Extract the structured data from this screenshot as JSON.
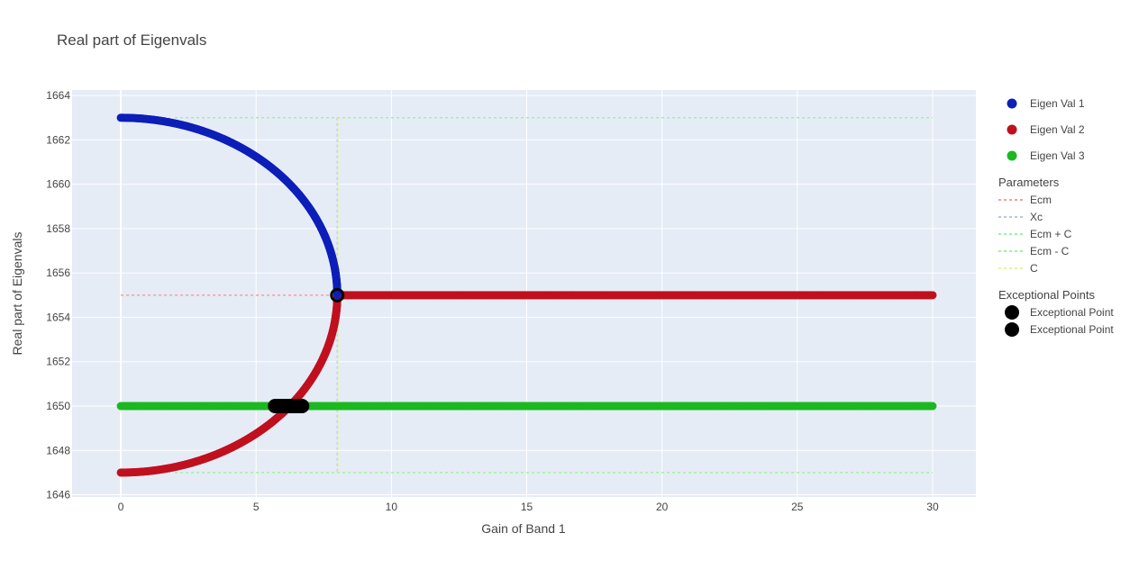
{
  "chart_data": {
    "type": "scatter",
    "title": "Real part of Eigenvals",
    "xlabel": "Gain of Band 1",
    "ylabel": "Real part of Eigenvals",
    "xlim": [
      -1.8,
      31.6
    ],
    "ylim": [
      1645.9,
      1664.25
    ],
    "xticks": [
      0,
      5,
      10,
      15,
      20,
      25,
      30
    ],
    "yticks": [
      1646,
      1648,
      1650,
      1652,
      1654,
      1656,
      1658,
      1660,
      1662,
      1664
    ],
    "grid": true,
    "legend_position": "right",
    "plot_bg": "#e5ecf6",
    "colors": {
      "eig1": "#0d1fb8",
      "eig2": "#c0101e",
      "eig3": "#1ab920",
      "ecm": "#f4a09a",
      "xc": "#bcc3ec",
      "ecm_plus_c": "#9ef29e",
      "ecm_minus_c": "#9ef29e",
      "c": "#e8f3a0",
      "ep": "#000000"
    },
    "params": {
      "ecm": 1655,
      "xc": 8,
      "c": 8,
      "x_max": 30,
      "eig3_value": 1650
    },
    "series": [
      {
        "name": "Eigen Val 1",
        "color_key": "eig1",
        "description_points": "x 0..8, y = 1655 + sqrt(64 - x^2)"
      },
      {
        "name": "Eigen Val 2",
        "color_key": "eig2",
        "description_points": "x 0..8, y = 1655 - sqrt(64 - x^2); x 8..30, y = 1655"
      },
      {
        "name": "Eigen Val 3",
        "color_key": "eig3",
        "description_points": "x 0..30, y = 1650"
      }
    ],
    "exceptional_points": [
      {
        "name": "Exceptional Point",
        "x": 8,
        "y": 1655
      },
      {
        "name": "Exceptional Point",
        "x_from": 5.7,
        "x_to": 6.7,
        "y": 1650
      }
    ],
    "lines": [
      {
        "name": "Ecm",
        "y": 1655,
        "x_from": 0,
        "x_to": 30
      },
      {
        "name": "Xc",
        "x": 8,
        "y_from": 1647,
        "y_to": 1663
      },
      {
        "name": "Ecm + C",
        "y": 1663,
        "x_from": 0,
        "x_to": 30
      },
      {
        "name": "Ecm - C",
        "y": 1647,
        "x_from": 0,
        "x_to": 30
      },
      {
        "name": "C",
        "x": 8,
        "y_from": 1647,
        "y_to": 1663
      }
    ]
  },
  "legend": {
    "eig1": "Eigen Val 1",
    "eig2": "Eigen Val 2",
    "eig3": "Eigen Val 3",
    "params_title": "Parameters",
    "ecm": "Ecm",
    "xc": "Xc",
    "ecm_plus_c": "Ecm + C",
    "ecm_minus_c": "Ecm - C",
    "c": "C",
    "ep_title": "Exceptional Points",
    "ep1": "Exceptional Point",
    "ep2": "Exceptional Point"
  }
}
